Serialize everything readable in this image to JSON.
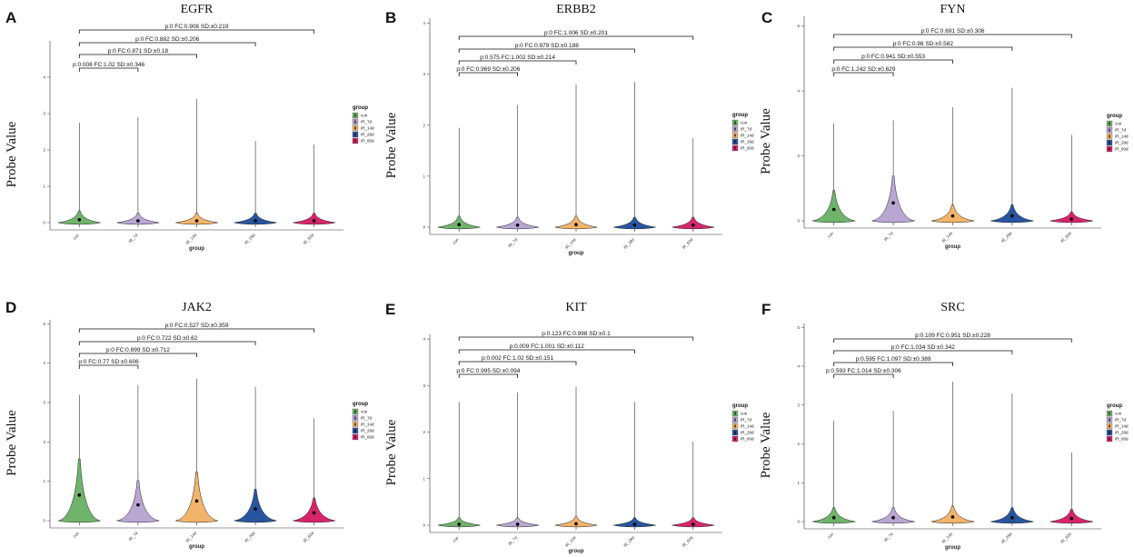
{
  "chart_data": [
    {
      "type": "violin",
      "panel_label": "A",
      "title": "EGFR",
      "xlabel": "group",
      "ylabel": "Probe Value",
      "ylim": [
        0,
        5
      ],
      "yticks": [
        0,
        1,
        2,
        3,
        4
      ],
      "categories": [
        "con",
        "IR_7d",
        "IR_14d",
        "IR_28d",
        "IR_60d"
      ],
      "max_values": [
        2.75,
        2.9,
        3.4,
        2.25,
        2.15
      ],
      "medians": [
        0.08,
        0.05,
        0.05,
        0.05,
        0.05
      ],
      "comparisons": [
        {
          "target": 1,
          "label": "p:0.008 FC:1.02 SD:±0.346"
        },
        {
          "target": 2,
          "label": "p:0 FC:0.871 SD:±0.18"
        },
        {
          "target": 3,
          "label": "p:0 FC:0.882 SD:±0.206"
        },
        {
          "target": 4,
          "label": "p:0 FC:0.908 SD:±0.219"
        }
      ]
    },
    {
      "type": "violin",
      "panel_label": "B",
      "title": "ERBB2",
      "xlabel": "group",
      "ylabel": "Probe Value",
      "ylim": [
        0,
        4.1
      ],
      "yticks": [
        0,
        1,
        2,
        3,
        4
      ],
      "categories": [
        "con",
        "IR_7d",
        "IR_14d",
        "IR_28d",
        "IR_60d"
      ],
      "max_values": [
        1.95,
        2.4,
        2.8,
        2.85,
        1.75
      ],
      "medians": [
        0.05,
        0.04,
        0.05,
        0.04,
        0.04
      ],
      "comparisons": [
        {
          "target": 1,
          "label": "p:0 FC:0.969 SD:±0.206"
        },
        {
          "target": 2,
          "label": "p:0.575 FC:1.002 SD:±0.214"
        },
        {
          "target": 3,
          "label": "p:0 FC:0.979 SD:±0.188"
        },
        {
          "target": 4,
          "label": "p:0 FC:1.006 SD:±0.201"
        }
      ]
    },
    {
      "type": "violin",
      "panel_label": "C",
      "title": "FYN",
      "xlabel": "group",
      "ylabel": "Probe Value",
      "ylim": [
        0,
        6.3
      ],
      "yticks": [
        0,
        2,
        4,
        6
      ],
      "categories": [
        "con",
        "IR_7d",
        "IR_14d",
        "IR_28d",
        "IR_60d"
      ],
      "max_values": [
        3.0,
        3.1,
        3.5,
        4.1,
        2.65
      ],
      "medians": [
        0.35,
        0.55,
        0.15,
        0.15,
        0.05
      ],
      "comparisons": [
        {
          "target": 1,
          "label": "p:0 FC:1.242 SD:±0.629"
        },
        {
          "target": 2,
          "label": "p:0 FC:0.941 SD:±0.553"
        },
        {
          "target": 3,
          "label": "p:0 FC:0.98 SD:±0.582"
        },
        {
          "target": 4,
          "label": "p:0 FC:0.691 SD:±0.306"
        }
      ]
    },
    {
      "type": "violin",
      "panel_label": "D",
      "title": "JAK2",
      "xlabel": "group",
      "ylabel": "Probe Value",
      "ylim": [
        0,
        5.1
      ],
      "yticks": [
        0,
        1,
        2,
        3,
        4,
        5
      ],
      "categories": [
        "con",
        "IR_7d",
        "IR_14d",
        "IR_28d",
        "IR_60d"
      ],
      "max_values": [
        3.2,
        3.45,
        3.6,
        3.4,
        2.6
      ],
      "medians": [
        0.65,
        0.4,
        0.5,
        0.3,
        0.2
      ],
      "comparisons": [
        {
          "target": 1,
          "label": "p:0 FC:0.77 SD:±0.606"
        },
        {
          "target": 2,
          "label": "p:0 FC:0.899 SD:±0.712"
        },
        {
          "target": 3,
          "label": "p:0 FC:0.722 SD:±0.62"
        },
        {
          "target": 4,
          "label": "p:0 FC:0.527 SD:±0.359"
        }
      ]
    },
    {
      "type": "violin",
      "panel_label": "E",
      "title": "KIT",
      "xlabel": "group",
      "ylabel": "Probe Value",
      "ylim": [
        0,
        4.1
      ],
      "yticks": [
        0,
        1,
        2,
        3,
        4
      ],
      "categories": [
        "con",
        "IR_7d",
        "IR_14d",
        "IR_28d",
        "IR_60d"
      ],
      "max_values": [
        2.65,
        2.85,
        2.98,
        2.65,
        1.8
      ],
      "medians": [
        0.02,
        0.02,
        0.03,
        0.02,
        0.02
      ],
      "comparisons": [
        {
          "target": 1,
          "label": "p:0 FC:0.995 SD:±0.094"
        },
        {
          "target": 2,
          "label": "p:0.002 FC:1.02 SD:±0.151"
        },
        {
          "target": 3,
          "label": "p:0.009 FC:1.001 SD:±0.112"
        },
        {
          "target": 4,
          "label": "p:0.123 FC:0.998 SD:±0.1"
        }
      ]
    },
    {
      "type": "violin",
      "panel_label": "F",
      "title": "SRC",
      "xlabel": "group",
      "ylabel": "Probe Value",
      "ylim": [
        0,
        5.1
      ],
      "yticks": [
        0,
        1,
        2,
        3,
        4,
        5
      ],
      "categories": [
        "con",
        "IR_7d",
        "IR_14d",
        "IR_28d",
        "IR_60d"
      ],
      "max_values": [
        2.6,
        2.85,
        3.6,
        3.3,
        1.78
      ],
      "medians": [
        0.1,
        0.1,
        0.12,
        0.1,
        0.08
      ],
      "comparisons": [
        {
          "target": 1,
          "label": "p:0.593 FC:1.014 SD:±0.306"
        },
        {
          "target": 2,
          "label": "p:0.595 FC:1.097 SD:±0.389"
        },
        {
          "target": 3,
          "label": "p:0 FC:1.034 SD:±0.342"
        },
        {
          "target": 4,
          "label": "p:0.109 FC:0.951 SD:±0.228"
        }
      ]
    }
  ],
  "legend": {
    "title": "group",
    "items": [
      "con",
      "IR_7d",
      "IR_14d",
      "IR_28d",
      "IR_60d"
    ],
    "colors": [
      "#6fb46a",
      "#b9a6d3",
      "#f2b46a",
      "#2855a0",
      "#d8246c"
    ]
  }
}
